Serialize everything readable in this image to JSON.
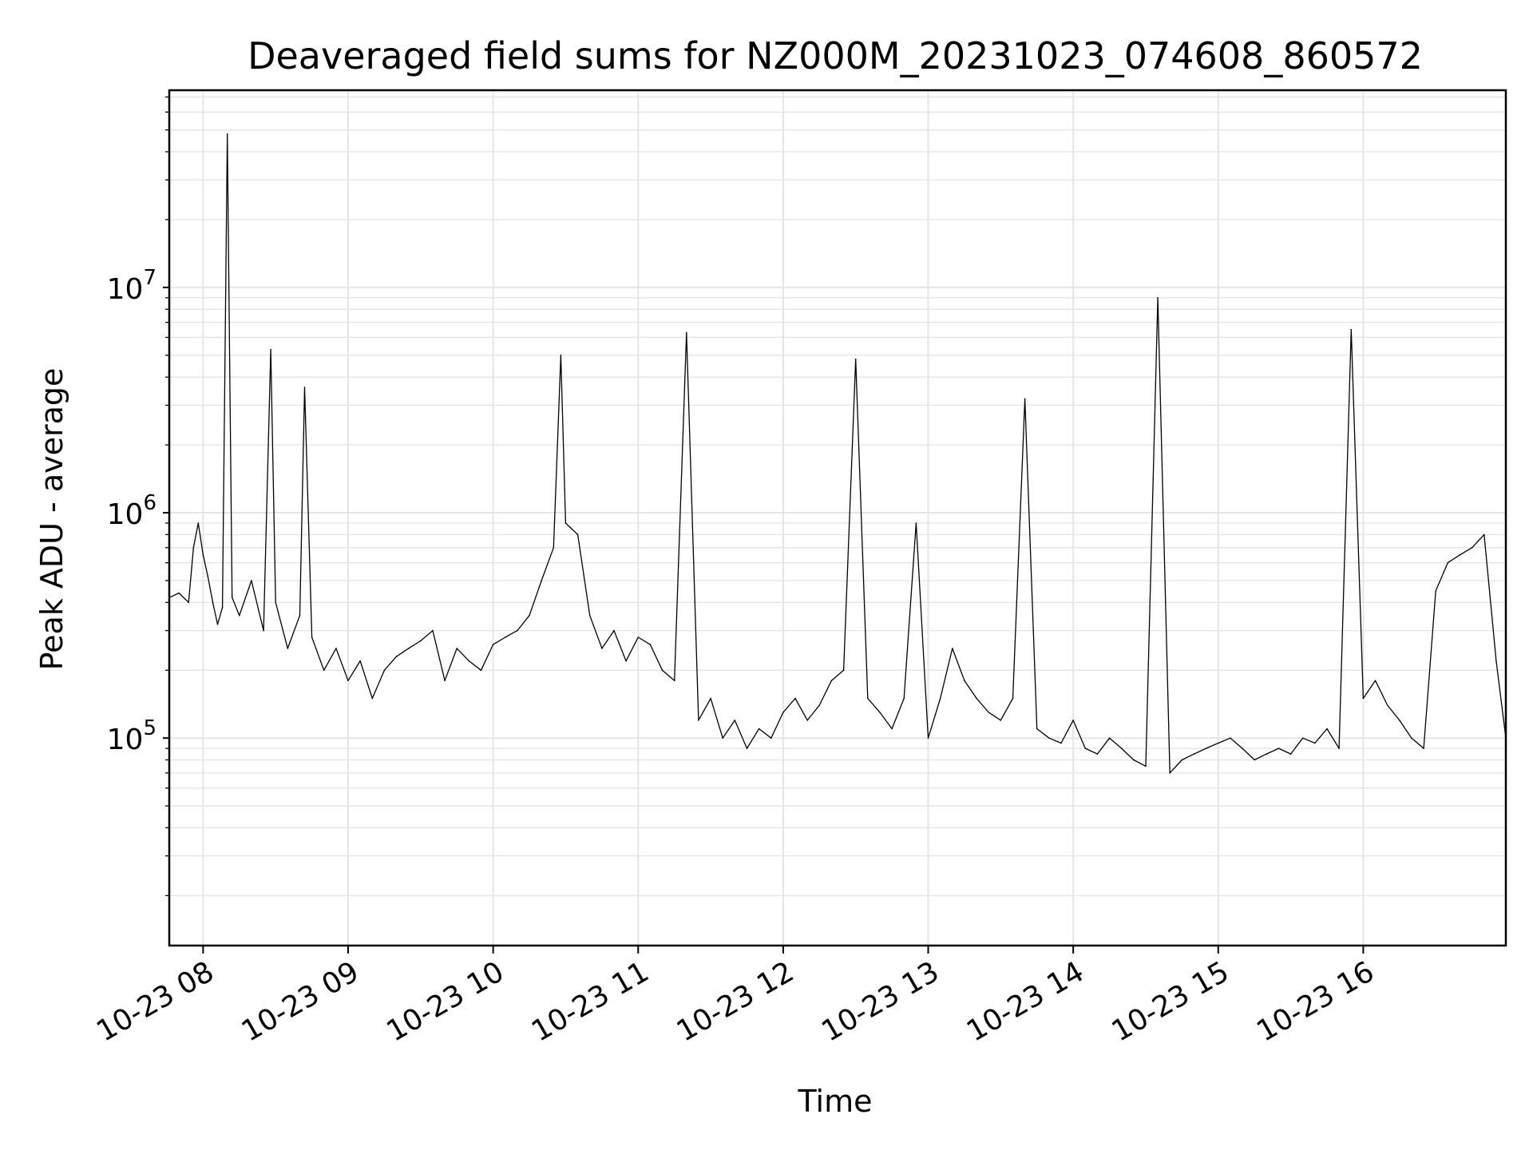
{
  "chart_data": {
    "type": "line",
    "title": "Deaveraged field sums for NZ000M_20231023_074608_860572",
    "xlabel": "Time",
    "ylabel": "Peak ADU - average",
    "yscale": "log",
    "ylim": [
      12000,
      75000000
    ],
    "xlim": [
      "2023-10-23 07:46",
      "2023-10-23 16:59"
    ],
    "grid": true,
    "legend": "none",
    "line_color": "#000000",
    "grid_color": "#e5e5e5",
    "x_ticks": [
      "10-23 08",
      "10-23 09",
      "10-23 10",
      "10-23 11",
      "10-23 12",
      "10-23 13",
      "10-23 14",
      "10-23 15",
      "10-23 16"
    ],
    "x_tick_times": [
      "2023-10-23 08:00",
      "2023-10-23 09:00",
      "2023-10-23 10:00",
      "2023-10-23 11:00",
      "2023-10-23 12:00",
      "2023-10-23 13:00",
      "2023-10-23 14:00",
      "2023-10-23 15:00",
      "2023-10-23 16:00"
    ],
    "y_ticks": [
      {
        "value": 100000,
        "base": "10",
        "exp": "5"
      },
      {
        "value": 1000000,
        "base": "10",
        "exp": "6"
      },
      {
        "value": 10000000,
        "base": "10",
        "exp": "7"
      }
    ],
    "series": [
      {
        "x": [
          "2023-10-23 07:46",
          "2023-10-23 07:50",
          "2023-10-23 07:54",
          "2023-10-23 07:56",
          "2023-10-23 07:58",
          "2023-10-23 08:00",
          "2023-10-23 08:02",
          "2023-10-23 08:04",
          "2023-10-23 08:06",
          "2023-10-23 08:08",
          "2023-10-23 08:10",
          "2023-10-23 08:12",
          "2023-10-23 08:15",
          "2023-10-23 08:20",
          "2023-10-23 08:25",
          "2023-10-23 08:28",
          "2023-10-23 08:30",
          "2023-10-23 08:35",
          "2023-10-23 08:40",
          "2023-10-23 08:42",
          "2023-10-23 08:45",
          "2023-10-23 08:50",
          "2023-10-23 08:55",
          "2023-10-23 09:00",
          "2023-10-23 09:05",
          "2023-10-23 09:10",
          "2023-10-23 09:15",
          "2023-10-23 09:20",
          "2023-10-23 09:25",
          "2023-10-23 09:30",
          "2023-10-23 09:35",
          "2023-10-23 09:40",
          "2023-10-23 09:45",
          "2023-10-23 09:50",
          "2023-10-23 09:55",
          "2023-10-23 10:00",
          "2023-10-23 10:05",
          "2023-10-23 10:10",
          "2023-10-23 10:15",
          "2023-10-23 10:20",
          "2023-10-23 10:25",
          "2023-10-23 10:28",
          "2023-10-23 10:30",
          "2023-10-23 10:35",
          "2023-10-23 10:40",
          "2023-10-23 10:45",
          "2023-10-23 10:50",
          "2023-10-23 10:55",
          "2023-10-23 11:00",
          "2023-10-23 11:05",
          "2023-10-23 11:10",
          "2023-10-23 11:15",
          "2023-10-23 11:20",
          "2023-10-23 11:25",
          "2023-10-23 11:30",
          "2023-10-23 11:35",
          "2023-10-23 11:40",
          "2023-10-23 11:45",
          "2023-10-23 11:50",
          "2023-10-23 11:55",
          "2023-10-23 12:00",
          "2023-10-23 12:05",
          "2023-10-23 12:10",
          "2023-10-23 12:15",
          "2023-10-23 12:20",
          "2023-10-23 12:25",
          "2023-10-23 12:30",
          "2023-10-23 12:35",
          "2023-10-23 12:40",
          "2023-10-23 12:45",
          "2023-10-23 12:50",
          "2023-10-23 12:55",
          "2023-10-23 13:00",
          "2023-10-23 13:05",
          "2023-10-23 13:10",
          "2023-10-23 13:15",
          "2023-10-23 13:20",
          "2023-10-23 13:25",
          "2023-10-23 13:30",
          "2023-10-23 13:35",
          "2023-10-23 13:40",
          "2023-10-23 13:45",
          "2023-10-23 13:50",
          "2023-10-23 13:55",
          "2023-10-23 14:00",
          "2023-10-23 14:05",
          "2023-10-23 14:10",
          "2023-10-23 14:15",
          "2023-10-23 14:20",
          "2023-10-23 14:25",
          "2023-10-23 14:30",
          "2023-10-23 14:35",
          "2023-10-23 14:40",
          "2023-10-23 14:45",
          "2023-10-23 14:50",
          "2023-10-23 14:55",
          "2023-10-23 15:00",
          "2023-10-23 15:05",
          "2023-10-23 15:10",
          "2023-10-23 15:15",
          "2023-10-23 15:20",
          "2023-10-23 15:25",
          "2023-10-23 15:30",
          "2023-10-23 15:35",
          "2023-10-23 15:40",
          "2023-10-23 15:45",
          "2023-10-23 15:50",
          "2023-10-23 15:55",
          "2023-10-23 16:00",
          "2023-10-23 16:05",
          "2023-10-23 16:10",
          "2023-10-23 16:15",
          "2023-10-23 16:20",
          "2023-10-23 16:25",
          "2023-10-23 16:30",
          "2023-10-23 16:35",
          "2023-10-23 16:40",
          "2023-10-23 16:45",
          "2023-10-23 16:50",
          "2023-10-23 16:55",
          "2023-10-23 16:59"
        ],
        "y": [
          420000,
          440000,
          400000,
          700000,
          900000,
          650000,
          520000,
          400000,
          320000,
          380000,
          48000000,
          420000,
          350000,
          500000,
          300000,
          5300000,
          400000,
          250000,
          350000,
          3600000,
          280000,
          200000,
          250000,
          180000,
          220000,
          150000,
          200000,
          230000,
          250000,
          270000,
          300000,
          180000,
          250000,
          220000,
          200000,
          260000,
          280000,
          300000,
          350000,
          500000,
          700000,
          5000000,
          900000,
          800000,
          350000,
          250000,
          300000,
          220000,
          280000,
          260000,
          200000,
          180000,
          6300000,
          120000,
          150000,
          100000,
          120000,
          90000,
          110000,
          100000,
          130000,
          150000,
          120000,
          140000,
          180000,
          200000,
          4800000,
          150000,
          130000,
          110000,
          150000,
          900000,
          100000,
          150000,
          250000,
          180000,
          150000,
          130000,
          120000,
          150000,
          3200000,
          110000,
          100000,
          95000,
          120000,
          90000,
          85000,
          100000,
          90000,
          80000,
          75000,
          9000000,
          70000,
          80000,
          85000,
          90000,
          95000,
          100000,
          90000,
          80000,
          85000,
          90000,
          85000,
          100000,
          95000,
          110000,
          90000,
          6500000,
          150000,
          180000,
          140000,
          120000,
          100000,
          90000,
          450000,
          600000,
          650000,
          700000,
          800000,
          220000,
          100000
        ]
      }
    ]
  }
}
